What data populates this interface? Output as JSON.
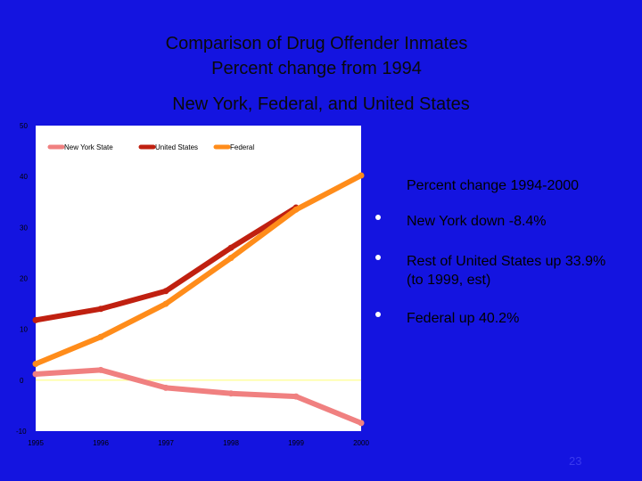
{
  "slide": {
    "title_line1": "Comparison of Drug Offender Inmates",
    "title_line2": "Percent change from 1994",
    "title_line3": "New York, Federal, and United States",
    "slide_number": "23"
  },
  "bullets": {
    "heading": "Percent change 1994-2000",
    "items": [
      {
        "text": "New York down -8.4%"
      },
      {
        "text": "Rest of United States up 33.9%"
      },
      {
        "text": "(to 1999, est)"
      },
      {
        "text": "Federal up 40.2%"
      }
    ]
  },
  "colors": {
    "background": "#1414e0",
    "plot_bg": "#ffffff",
    "zero_line": "#ffff80",
    "new_york": "#f08080",
    "united_states": "#c02010",
    "federal": "#ff8c1a"
  },
  "chart_data": {
    "type": "line",
    "x": [
      "1995",
      "1996",
      "1997",
      "1998",
      "1999",
      "2000"
    ],
    "x_numeric": [
      1995,
      1996,
      1997,
      1998,
      1999,
      2000
    ],
    "ylim": [
      -10,
      50
    ],
    "yticks": [
      "50",
      "40",
      "30",
      "20",
      "10",
      "0",
      "-10"
    ],
    "ytick_values": [
      50,
      40,
      30,
      20,
      10,
      0,
      -10
    ],
    "series": [
      {
        "name": "New York State",
        "key": "new_york",
        "x": [
          1995,
          1996,
          1997,
          1998,
          1999,
          2000
        ],
        "values": [
          1.2,
          2.0,
          -1.5,
          -2.6,
          -3.2,
          -8.4
        ]
      },
      {
        "name": "United States",
        "key": "united_states",
        "x": [
          1995,
          1996,
          1997,
          1998,
          1999
        ],
        "values": [
          11.8,
          14.0,
          17.5,
          26.0,
          33.9
        ]
      },
      {
        "name": "Federal",
        "key": "federal",
        "x": [
          1995,
          1996,
          1997,
          1998,
          1999,
          2000
        ],
        "values": [
          3.2,
          8.5,
          15.0,
          24.0,
          33.5,
          40.2
        ]
      }
    ],
    "legend": [
      "New York State",
      "United States",
      "Federal"
    ],
    "grid": false
  }
}
